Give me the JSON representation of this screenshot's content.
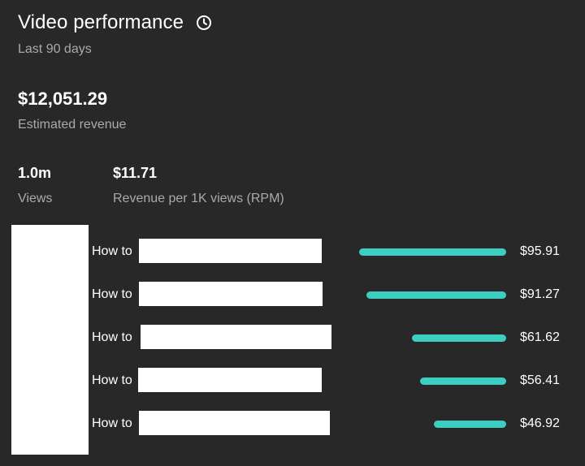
{
  "header": {
    "title": "Video performance",
    "title_icon": "history-clock-icon",
    "subtitle": "Last 90 days"
  },
  "revenue": {
    "value": "$12,051.29",
    "label": "Estimated revenue"
  },
  "metrics": {
    "views": {
      "value": "1.0m",
      "label": "Views"
    },
    "rpm": {
      "value": "$11.71",
      "label": "Revenue per 1K views (RPM)"
    }
  },
  "videos": [
    {
      "title": "How to",
      "value": "$95.91",
      "amount": 95.91
    },
    {
      "title": "How to",
      "value": "$91.27",
      "amount": 91.27
    },
    {
      "title": "How to",
      "value": "$61.62",
      "amount": 61.62
    },
    {
      "title": "How to",
      "value": "$56.41",
      "amount": 56.41
    },
    {
      "title": "How to",
      "value": "$46.92",
      "amount": 46.92
    }
  ],
  "colors": {
    "background": "#282828",
    "bar": "#3ccfc1",
    "muted_text": "#aaaaaa"
  }
}
